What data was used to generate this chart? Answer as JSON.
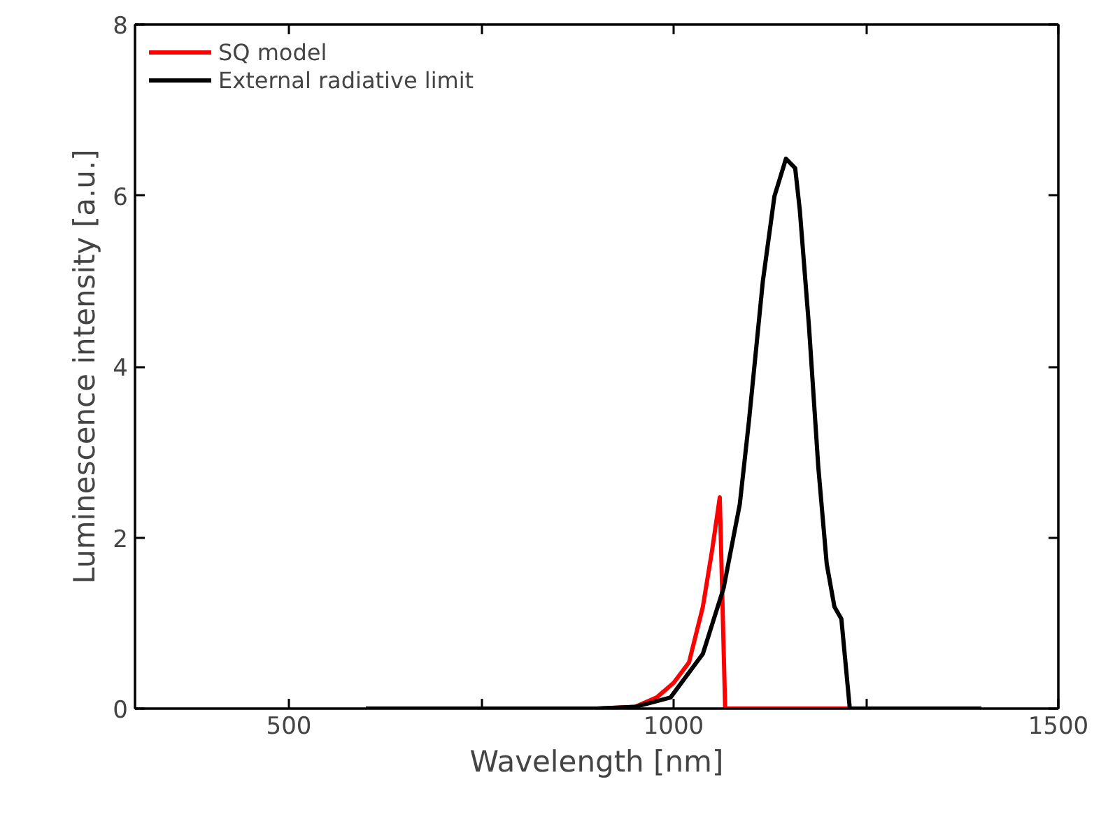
{
  "chart_data": {
    "type": "line",
    "xlabel": "Wavelength [nm]",
    "ylabel": "Luminescence intensity [a.u.]",
    "xlim": [
      300,
      1500
    ],
    "ylim": [
      0,
      8
    ],
    "xticks": [
      500,
      {
        "value": 750,
        "label": null
      },
      1000,
      {
        "value": 1250,
        "label": null
      },
      1500
    ],
    "yticks": [
      0,
      2,
      4,
      6,
      8
    ],
    "grid": false,
    "legend": "top left",
    "marker": "none",
    "line_style": "solid",
    "series": [
      {
        "name": "SQ model",
        "color": "#ff0000",
        "x": [
          600,
          900,
          950,
          978,
          1000,
          1020,
          1038,
          1050,
          1060,
          1067,
          1229
        ],
        "values": [
          0,
          0,
          0.02,
          0.13,
          0.3,
          0.54,
          1.19,
          1.85,
          2.47,
          0,
          0
        ]
      },
      {
        "name": "External radiative limit",
        "color": "#000000",
        "x": [
          600,
          900,
          950,
          996,
          1038,
          1065,
          1086,
          1098,
          1116,
          1131,
          1146,
          1158,
          1164,
          1176,
          1188,
          1199,
          1209,
          1218,
          1229,
          1400
        ],
        "values": [
          0,
          0,
          0.02,
          0.13,
          0.64,
          1.41,
          2.39,
          3.37,
          5.0,
          5.99,
          6.43,
          6.32,
          5.83,
          4.46,
          2.83,
          1.69,
          1.19,
          1.05,
          0,
          0
        ]
      }
    ]
  }
}
